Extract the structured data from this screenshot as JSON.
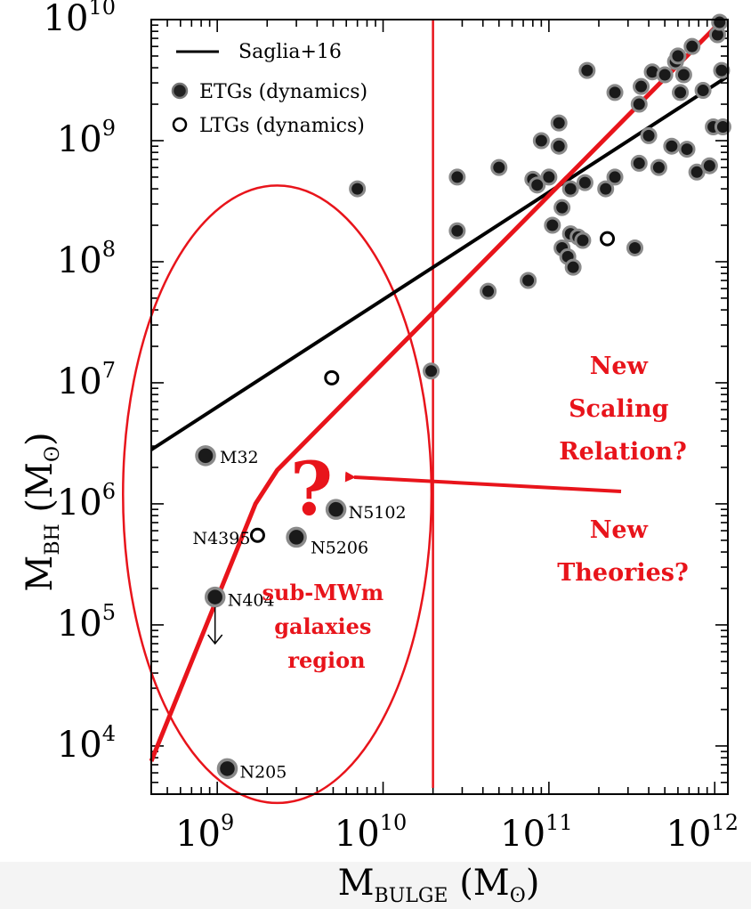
{
  "chart_data": {
    "type": "scatter",
    "x_scale": "log",
    "y_scale": "log",
    "xlim": [
      400000000.0,
      1200000000000.0
    ],
    "ylim": [
      4000.0,
      10000000000.0
    ],
    "xlabel": {
      "main": "M",
      "sub": "BULGE",
      "unit": "(M",
      "unit_sub": "ʘ",
      "unit_close": ")"
    },
    "ylabel": {
      "main": "M",
      "sub": "BH",
      "unit": "(M",
      "unit_sub": "ʘ",
      "unit_close": ")"
    },
    "x_ticks": [
      {
        "value": 1000000000.0,
        "base": "10",
        "exp": "9"
      },
      {
        "value": 10000000000.0,
        "base": "10",
        "exp": "10"
      },
      {
        "value": 100000000000.0,
        "base": "10",
        "exp": "11"
      },
      {
        "value": 1000000000000.0,
        "base": "10",
        "exp": "12"
      }
    ],
    "y_ticks": [
      {
        "value": 10000.0,
        "base": "10",
        "exp": "4"
      },
      {
        "value": 100000.0,
        "base": "10",
        "exp": "5"
      },
      {
        "value": 1000000.0,
        "base": "10",
        "exp": "6"
      },
      {
        "value": 10000000.0,
        "base": "10",
        "exp": "7"
      },
      {
        "value": 100000000.0,
        "base": "10",
        "exp": "8"
      },
      {
        "value": 1000000000.0,
        "base": "10",
        "exp": "9"
      },
      {
        "value": 10000000000.0,
        "base": "10",
        "exp": "10"
      }
    ],
    "legend": {
      "position": "top-left",
      "entries": [
        {
          "marker": "line",
          "label": "Saglia+16"
        },
        {
          "marker": "filled-circle",
          "label": "ETGs (dynamics)"
        },
        {
          "marker": "open-circle",
          "label": "LTGs (dynamics)"
        }
      ]
    },
    "saglia_line": {
      "x": [
        400000000.0,
        1200000000000.0
      ],
      "y": [
        2800000.0,
        3400000000.0
      ],
      "color": "#000000"
    },
    "red_relation": {
      "x": [
        400000000.0,
        1700000000.0,
        2300000000.0,
        1120000000000.0
      ],
      "y": [
        7500.0,
        1000000.0,
        1900000.0,
        10000000000.0
      ],
      "color": "#e8141b"
    },
    "red_vertical_x": 20000000000.0,
    "red_vertical_y": [
      4500.0,
      10000000000.0
    ],
    "region_ellipse": {
      "cx": 2300000000.0,
      "cy": 1200000.0,
      "rx_decades": 0.93,
      "ry_decades": 2.55
    },
    "labeled_galaxies": [
      {
        "name": "M32",
        "x": 850000000.0,
        "y": 2500000.0,
        "type": "ETG"
      },
      {
        "name": "N5102",
        "x": 5200000000.0,
        "y": 900000.0,
        "type": "ETG"
      },
      {
        "name": "N4395",
        "x": 1750000000.0,
        "y": 550000.0,
        "type": "LTG"
      },
      {
        "name": "N5206",
        "x": 3000000000.0,
        "y": 530000.0,
        "type": "ETG"
      },
      {
        "name": "N404",
        "x": 970000000.0,
        "y": 170000.0,
        "type": "ETG"
      },
      {
        "name": "N205",
        "x": 1150000000.0,
        "y": 6500.0,
        "type": "ETG"
      }
    ],
    "upper_limit_arrow": {
      "x": 970000000.0,
      "y_from": 140000.0,
      "y_to": 70000.0
    },
    "etg_points": [
      [
        7000000000.0,
        400000000.0
      ],
      [
        19500000000.0,
        12500000.0
      ],
      [
        28000000000.0,
        500000000.0
      ],
      [
        28000000000.0,
        180000000.0
      ],
      [
        43000000000.0,
        57000000.0
      ],
      [
        50000000000.0,
        600000000.0
      ],
      [
        75000000000.0,
        70000000.0
      ],
      [
        80000000000.0,
        480000000.0
      ],
      [
        85000000000.0,
        430000000.0
      ],
      [
        90000000000.0,
        1000000000.0
      ],
      [
        100000000000.0,
        500000000.0
      ],
      [
        105000000000.0,
        200000000.0
      ],
      [
        115000000000.0,
        900000000.0
      ],
      [
        115000000000.0,
        1400000000.0
      ],
      [
        120000000000.0,
        280000000.0
      ],
      [
        120000000000.0,
        130000000.0
      ],
      [
        130000000000.0,
        110000000.0
      ],
      [
        135000000000.0,
        170000000.0
      ],
      [
        135000000000.0,
        400000000.0
      ],
      [
        140000000000.0,
        90000000.0
      ],
      [
        150000000000.0,
        160000000.0
      ],
      [
        160000000000.0,
        150000000.0
      ],
      [
        165000000000.0,
        450000000.0
      ],
      [
        170000000000.0,
        3800000000.0
      ],
      [
        220000000000.0,
        400000000.0
      ],
      [
        250000000000.0,
        500000000.0
      ],
      [
        250000000000.0,
        2500000000.0
      ],
      [
        330000000000.0,
        130000000.0
      ],
      [
        350000000000.0,
        2000000000.0
      ],
      [
        350000000000.0,
        650000000.0
      ],
      [
        360000000000.0,
        2800000000.0
      ],
      [
        400000000000.0,
        1100000000.0
      ],
      [
        420000000000.0,
        3700000000.0
      ],
      [
        460000000000.0,
        600000000.0
      ],
      [
        500000000000.0,
        3500000000.0
      ],
      [
        550000000000.0,
        900000000.0
      ],
      [
        580000000000.0,
        4500000000.0
      ],
      [
        600000000000.0,
        5000000000.0
      ],
      [
        620000000000.0,
        2500000000.0
      ],
      [
        650000000000.0,
        3500000000.0
      ],
      [
        680000000000.0,
        850000000.0
      ],
      [
        730000000000.0,
        6000000000.0
      ],
      [
        780000000000.0,
        550000000.0
      ],
      [
        850000000000.0,
        2600000000.0
      ],
      [
        930000000000.0,
        620000000.0
      ],
      [
        980000000000.0,
        1300000000.0
      ],
      [
        1040000000000.0,
        7500000000.0
      ],
      [
        1070000000000.0,
        9500000000.0
      ],
      [
        1100000000000.0,
        3800000000.0
      ],
      [
        1120000000000.0,
        1300000000.0
      ]
    ],
    "ltg_points": [
      [
        4900000000.0,
        11000000.0
      ],
      [
        225000000000.0,
        155000000.0
      ]
    ],
    "annotations": {
      "new_scaling": [
        "New",
        "Scaling",
        "Relation?"
      ],
      "new_theories": [
        "New",
        "Theories?"
      ],
      "sub_region": [
        "sub-MWm",
        "galaxies",
        "region"
      ],
      "question_mark": "?"
    }
  }
}
